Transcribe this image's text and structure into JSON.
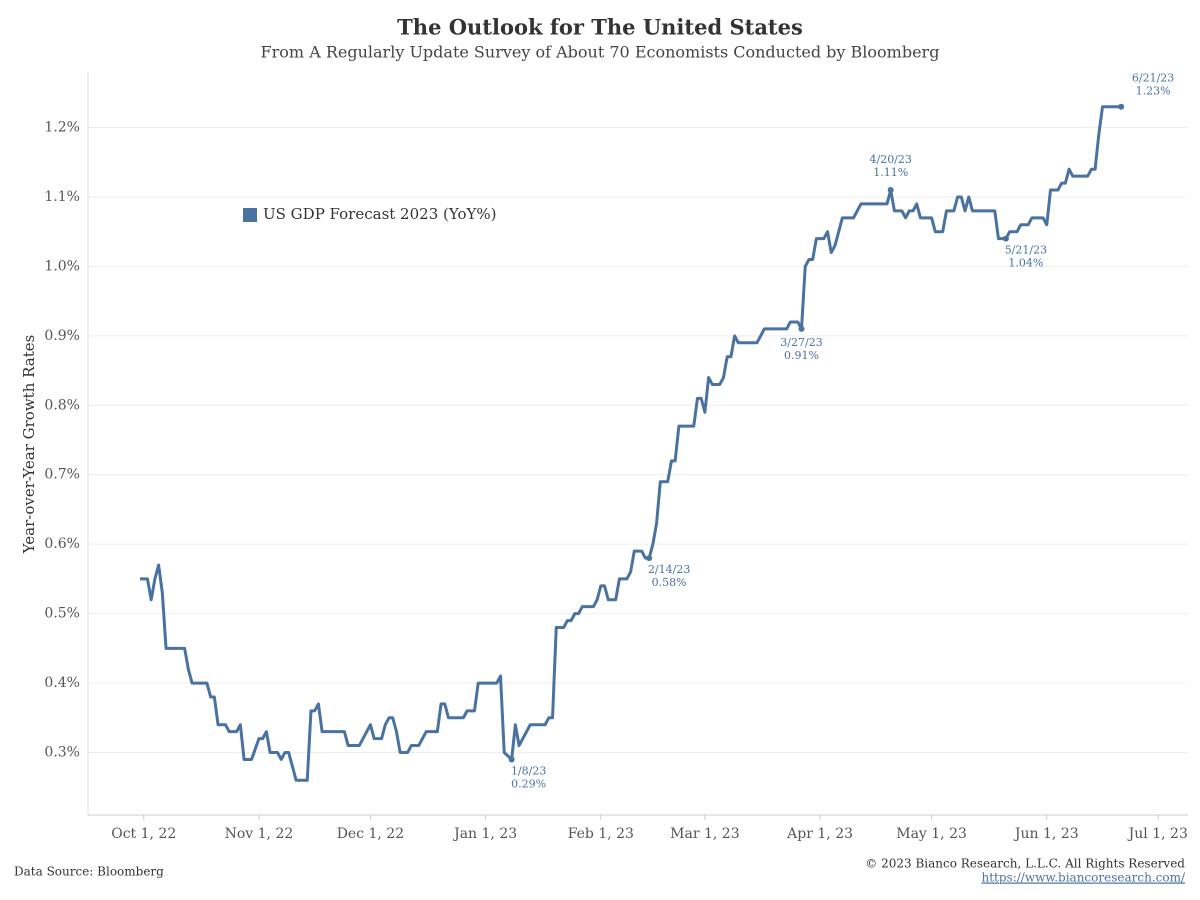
{
  "chart_data": {
    "type": "line",
    "title": "The Outlook for The United States",
    "subtitle": "From A Regularly Update Survey of About 70 Economists Conducted by Bloomberg",
    "ylabel": "Year-over-Year Growth Rates",
    "x": [
      "2022-09-30",
      "2022-10-02",
      "2022-10-03",
      "2022-10-04",
      "2022-10-05",
      "2022-10-06",
      "2022-10-07",
      "2022-10-12",
      "2022-10-13",
      "2022-10-14",
      "2022-10-18",
      "2022-10-19",
      "2022-10-20",
      "2022-10-21",
      "2022-10-23",
      "2022-10-24",
      "2022-10-26",
      "2022-10-27",
      "2022-10-28",
      "2022-10-30",
      "2022-11-01",
      "2022-11-02",
      "2022-11-03",
      "2022-11-04",
      "2022-11-06",
      "2022-11-07",
      "2022-11-08",
      "2022-11-09",
      "2022-11-11",
      "2022-11-14",
      "2022-11-15",
      "2022-11-16",
      "2022-11-17",
      "2022-11-18",
      "2022-11-24",
      "2022-11-25",
      "2022-11-28",
      "2022-11-30",
      "2022-12-01",
      "2022-12-02",
      "2022-12-04",
      "2022-12-05",
      "2022-12-06",
      "2022-12-07",
      "2022-12-08",
      "2022-12-09",
      "2022-12-11",
      "2022-12-12",
      "2022-12-14",
      "2022-12-16",
      "2022-12-19",
      "2022-12-20",
      "2022-12-21",
      "2022-12-22",
      "2022-12-26",
      "2022-12-27",
      "2022-12-29",
      "2022-12-30",
      "2023-01-04",
      "2023-01-05",
      "2023-01-06",
      "2023-01-08",
      "2023-01-09",
      "2023-01-10",
      "2023-01-13",
      "2023-01-17",
      "2023-01-18",
      "2023-01-19",
      "2023-01-20",
      "2023-01-22",
      "2023-01-23",
      "2023-01-24",
      "2023-01-25",
      "2023-01-26",
      "2023-01-27",
      "2023-01-30",
      "2023-01-31",
      "2023-02-01",
      "2023-02-02",
      "2023-02-03",
      "2023-02-05",
      "2023-02-06",
      "2023-02-08",
      "2023-02-09",
      "2023-02-10",
      "2023-02-12",
      "2023-02-13",
      "2023-02-14",
      "2023-02-15",
      "2023-02-16",
      "2023-02-17",
      "2023-02-19",
      "2023-02-20",
      "2023-02-21",
      "2023-02-22",
      "2023-02-26",
      "2023-02-27",
      "2023-02-28",
      "2023-03-01",
      "2023-03-02",
      "2023-03-03",
      "2023-03-05",
      "2023-03-06",
      "2023-03-07",
      "2023-03-08",
      "2023-03-09",
      "2023-03-10",
      "2023-03-15",
      "2023-03-17",
      "2023-03-23",
      "2023-03-24",
      "2023-03-26",
      "2023-03-27",
      "2023-03-28",
      "2023-03-29",
      "2023-03-30",
      "2023-03-31",
      "2023-04-02",
      "2023-04-03",
      "2023-04-04",
      "2023-04-05",
      "2023-04-07",
      "2023-04-10",
      "2023-04-12",
      "2023-04-19",
      "2023-04-20",
      "2023-04-21",
      "2023-04-23",
      "2023-04-24",
      "2023-04-25",
      "2023-04-26",
      "2023-04-27",
      "2023-04-28",
      "2023-05-01",
      "2023-05-02",
      "2023-05-04",
      "2023-05-05",
      "2023-05-07",
      "2023-05-08",
      "2023-05-09",
      "2023-05-10",
      "2023-05-11",
      "2023-05-12",
      "2023-05-18",
      "2023-05-19",
      "2023-05-21",
      "2023-05-22",
      "2023-05-24",
      "2023-05-25",
      "2023-05-27",
      "2023-05-28",
      "2023-05-31",
      "2023-06-01",
      "2023-06-02",
      "2023-06-04",
      "2023-06-05",
      "2023-06-06",
      "2023-06-07",
      "2023-06-08",
      "2023-06-12",
      "2023-06-13",
      "2023-06-14",
      "2023-06-15",
      "2023-06-16",
      "2023-06-21"
    ],
    "series": [
      {
        "name": "US GDP Forecast 2023 (YoY%)",
        "color": "#4a72a0",
        "values": [
          0.55,
          0.55,
          0.52,
          0.55,
          0.57,
          0.53,
          0.45,
          0.45,
          0.42,
          0.4,
          0.4,
          0.38,
          0.38,
          0.34,
          0.34,
          0.33,
          0.33,
          0.34,
          0.29,
          0.29,
          0.32,
          0.32,
          0.33,
          0.3,
          0.3,
          0.29,
          0.3,
          0.3,
          0.26,
          0.26,
          0.36,
          0.36,
          0.37,
          0.33,
          0.33,
          0.31,
          0.31,
          0.33,
          0.34,
          0.32,
          0.32,
          0.34,
          0.35,
          0.35,
          0.33,
          0.3,
          0.3,
          0.31,
          0.31,
          0.33,
          0.33,
          0.37,
          0.37,
          0.35,
          0.35,
          0.36,
          0.36,
          0.4,
          0.4,
          0.41,
          0.3,
          0.29,
          0.34,
          0.31,
          0.34,
          0.34,
          0.35,
          0.35,
          0.48,
          0.48,
          0.49,
          0.49,
          0.5,
          0.5,
          0.51,
          0.51,
          0.52,
          0.54,
          0.54,
          0.52,
          0.52,
          0.55,
          0.55,
          0.56,
          0.59,
          0.59,
          0.58,
          0.58,
          0.6,
          0.63,
          0.69,
          0.69,
          0.72,
          0.72,
          0.77,
          0.77,
          0.81,
          0.81,
          0.79,
          0.84,
          0.83,
          0.83,
          0.84,
          0.87,
          0.87,
          0.9,
          0.89,
          0.89,
          0.91,
          0.91,
          0.92,
          0.92,
          0.91,
          1.0,
          1.01,
          1.01,
          1.04,
          1.04,
          1.05,
          1.02,
          1.03,
          1.07,
          1.07,
          1.09,
          1.09,
          1.11,
          1.08,
          1.08,
          1.07,
          1.08,
          1.08,
          1.09,
          1.07,
          1.07,
          1.05,
          1.05,
          1.08,
          1.08,
          1.1,
          1.1,
          1.08,
          1.1,
          1.08,
          1.08,
          1.04,
          1.04,
          1.05,
          1.05,
          1.06,
          1.06,
          1.07,
          1.07,
          1.06,
          1.11,
          1.11,
          1.12,
          1.12,
          1.14,
          1.13,
          1.13,
          1.14,
          1.14,
          1.19,
          1.23,
          1.23
        ]
      }
    ],
    "xlim": [
      "2022-09-16",
      "2023-07-09"
    ],
    "xticks": [
      {
        "value": "2022-10-01",
        "label": "Oct 1, 22"
      },
      {
        "value": "2022-11-01",
        "label": "Nov 1, 22"
      },
      {
        "value": "2022-12-01",
        "label": "Dec 1, 22"
      },
      {
        "value": "2023-01-01",
        "label": "Jan 1, 23"
      },
      {
        "value": "2023-02-01",
        "label": "Feb 1, 23"
      },
      {
        "value": "2023-03-01",
        "label": "Mar 1, 23"
      },
      {
        "value": "2023-04-01",
        "label": "Apr 1, 23"
      },
      {
        "value": "2023-05-01",
        "label": "May 1, 23"
      },
      {
        "value": "2023-06-01",
        "label": "Jun 1, 23"
      },
      {
        "value": "2023-07-01",
        "label": "Jul 1, 23"
      }
    ],
    "ylim": [
      0.21,
      1.28
    ],
    "yticks": [
      {
        "value": 0.3,
        "label": "0.3%"
      },
      {
        "value": 0.4,
        "label": "0.4%"
      },
      {
        "value": 0.5,
        "label": "0.5%"
      },
      {
        "value": 0.6,
        "label": "0.6%"
      },
      {
        "value": 0.7,
        "label": "0.7%"
      },
      {
        "value": 0.8,
        "label": "0.8%"
      },
      {
        "value": 0.9,
        "label": "0.9%"
      },
      {
        "value": 1.0,
        "label": "1.0%"
      },
      {
        "value": 1.1,
        "label": "1.1%"
      },
      {
        "value": 1.2,
        "label": "1.2%"
      }
    ],
    "grid": true,
    "annotations": [
      {
        "x": "2023-01-08",
        "y": 0.29,
        "text": "1/8/23",
        "value_label": "0.29%"
      },
      {
        "x": "2023-02-14",
        "y": 0.58,
        "text": "2/14/23",
        "value_label": "0.58%"
      },
      {
        "x": "2023-03-27",
        "y": 0.91,
        "text": "3/27/23",
        "value_label": "0.91%"
      },
      {
        "x": "2023-04-20",
        "y": 1.11,
        "text": "4/20/23",
        "value_label": "1.11%"
      },
      {
        "x": "2023-05-21",
        "y": 1.04,
        "text": "5/21/23",
        "value_label": "1.04%"
      },
      {
        "x": "2023-06-21",
        "y": 1.23,
        "text": "6/21/23",
        "value_label": "1.23%"
      }
    ],
    "source": "Data Source: Bloomberg",
    "copyright": "© 2023 Bianco Research, L.L.C. All Rights Reserved",
    "url": "https://www.biancoresearch.com/"
  }
}
